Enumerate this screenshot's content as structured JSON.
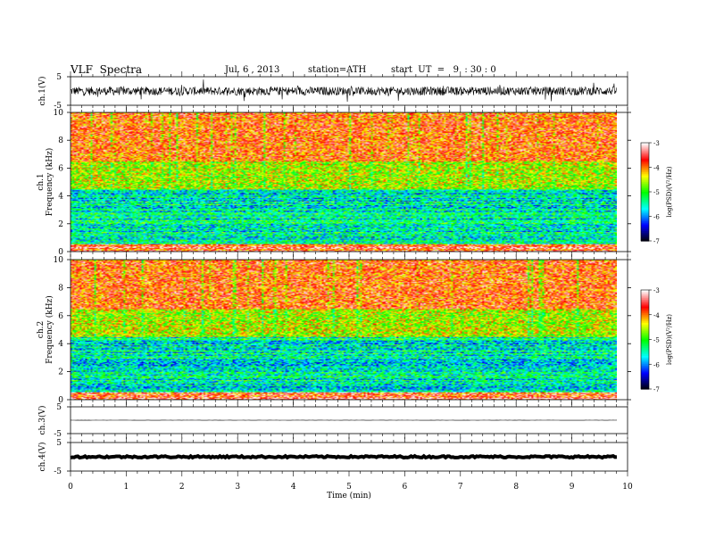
{
  "header": {
    "title": "VLF  Spectra",
    "date": "Jul. 6 , 2013",
    "station": "station=ATH",
    "start": "start  UT  =   9  : 30 : 0"
  },
  "xaxis": {
    "label": "Time  (min)",
    "ticks": [
      "0",
      "1",
      "2",
      "3",
      "4",
      "5",
      "6",
      "7",
      "8",
      "9",
      "10"
    ]
  },
  "colors": {
    "spectrogram_scale": [
      "#000000",
      "#0000ff",
      "#00ffff",
      "#00ff00",
      "#ffff00",
      "#ff0000",
      "#ffffff"
    ]
  },
  "chart_data": [
    {
      "type": "line",
      "name": "ch1-waveform",
      "ylabel": "ch.1(V)",
      "ylim": [
        -5,
        5
      ],
      "yticks": [
        "5",
        "-5"
      ],
      "xlim": [
        0,
        10
      ],
      "data_extent_min": 9.8,
      "description_values": {
        "mean": 0.0,
        "amplitude_approx": 1.5
      }
    },
    {
      "type": "heatmap",
      "name": "ch1-spectrogram",
      "ylabel": "ch.1\nFrequency  (kHz)",
      "ylim": [
        0,
        10
      ],
      "yticks": [
        "0",
        "2",
        "4",
        "6",
        "8",
        "10"
      ],
      "xlim": [
        0,
        10
      ],
      "colorbar": {
        "label": "log(PSD)(V²/Hz)",
        "range": [
          -7,
          -3
        ],
        "ticks": [
          "-3",
          "-4",
          "-5",
          "-6",
          "-7"
        ]
      },
      "bands_khz_to_logpsd": [
        [
          0,
          0.6,
          -3.5
        ],
        [
          0.6,
          4.5,
          -5.5
        ],
        [
          4.5,
          6.5,
          -4.5
        ],
        [
          6.5,
          10,
          -3.8
        ]
      ]
    },
    {
      "type": "heatmap",
      "name": "ch2-spectrogram",
      "ylabel": "ch.2\nFrequency  (kHz)",
      "ylim": [
        0,
        10
      ],
      "yticks": [
        "0",
        "2",
        "4",
        "6",
        "8",
        "10"
      ],
      "xlim": [
        0,
        10
      ],
      "colorbar": {
        "label": "log(PSD)(V²/Hz)",
        "range": [
          -7,
          -3
        ],
        "ticks": [
          "-3",
          "-4",
          "-5",
          "-6",
          "-7"
        ]
      },
      "bands_khz_to_logpsd": [
        [
          0,
          0.6,
          -3.5
        ],
        [
          0.6,
          4.5,
          -5.5
        ],
        [
          4.5,
          6.5,
          -4.5
        ],
        [
          6.5,
          10,
          -3.8
        ]
      ]
    },
    {
      "type": "line",
      "name": "ch3-waveform",
      "ylabel": "ch.3(V)",
      "ylim": [
        -5,
        5
      ],
      "yticks": [
        "5",
        "-5"
      ],
      "xlim": [
        0,
        10
      ],
      "description_values": {
        "mean": 0.0,
        "amplitude_approx": 0.05
      }
    },
    {
      "type": "line",
      "name": "ch4-waveform",
      "ylabel": "ch.4(V)",
      "ylim": [
        -5,
        5
      ],
      "yticks": [
        "5",
        "-5"
      ],
      "xlim": [
        0,
        10
      ],
      "description_values": {
        "mean": 0.0,
        "amplitude_approx": 0.3
      }
    }
  ]
}
